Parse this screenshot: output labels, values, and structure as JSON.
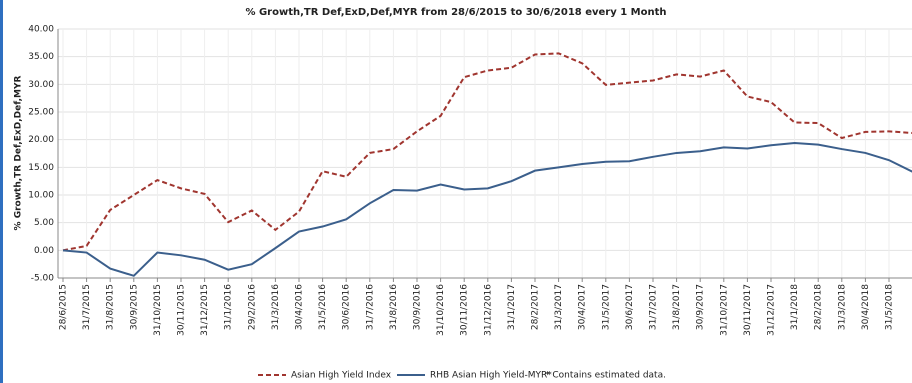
{
  "chart_data": {
    "type": "line",
    "title": "% Growth,TR Def,ExD,Def,MYR from 28/6/2015 to 30/6/2018 every 1 Month",
    "y_label": "% Growth,TR Def,ExD,Def,MYR",
    "note": "*  Contains estimated data.",
    "categories": [
      "28/6/2015",
      "31/7/2015",
      "31/8/2015",
      "30/9/2015",
      "31/10/2015",
      "30/11/2015",
      "31/12/2015",
      "31/1/2016",
      "29/2/2016",
      "31/3/2016",
      "30/4/2016",
      "31/5/2016",
      "30/6/2016",
      "31/7/2016",
      "31/8/2016",
      "30/9/2016",
      "31/10/2016",
      "30/11/2016",
      "31/12/2016",
      "31/1/2017",
      "28/2/2017",
      "31/3/2017",
      "30/4/2017",
      "31/5/2017",
      "30/6/2017",
      "31/7/2017",
      "31/8/2017",
      "30/9/2017",
      "31/10/2017",
      "30/11/2017",
      "31/12/2017",
      "31/1/2018",
      "28/2/2018",
      "31/3/2018",
      "30/4/2018",
      "31/5/2018",
      null
    ],
    "series": [
      {
        "name": "Asian High Yield Index",
        "color": "#a0352f",
        "dash": true,
        "values": [
          0,
          0.8,
          7.3,
          10,
          12.7,
          11.2,
          10.2,
          5.1,
          7.2,
          3.7,
          7,
          14.3,
          13.3,
          17.6,
          18.3,
          21.5,
          24.3,
          31.3,
          32.5,
          33,
          35.4,
          35.6,
          33.8,
          29.9,
          30.3,
          30.7,
          31.8,
          31.4,
          32.5,
          27.8,
          26.8,
          23.1,
          23,
          20.3,
          21.4,
          21.5,
          21.2
        ]
      },
      {
        "name": "RHB Asian High Yield-MYR*",
        "color": "#3b5f8c",
        "dash": false,
        "values": [
          0,
          -0.4,
          -3.3,
          -4.6,
          -0.4,
          -0.9,
          -1.7,
          -3.5,
          -2.5,
          0.4,
          3.4,
          4.3,
          5.6,
          8.5,
          10.9,
          10.8,
          11.9,
          11,
          11.2,
          12.5,
          14.4,
          15,
          15.6,
          16,
          16.1,
          16.9,
          17.6,
          17.9,
          18.6,
          18.4,
          19,
          19.4,
          19.1,
          18.3,
          17.6,
          16.3,
          14.2
        ]
      }
    ],
    "ylim": [
      -5,
      40
    ],
    "yticks": [
      {
        "value": -5,
        "label": "-5.00"
      },
      {
        "value": 0,
        "label": "0.00"
      },
      {
        "value": 5,
        "label": "5.00"
      },
      {
        "value": 10,
        "label": "10.00"
      },
      {
        "value": 15,
        "label": "15.00"
      },
      {
        "value": 20,
        "label": "20.00"
      },
      {
        "value": 25,
        "label": "25.00"
      },
      {
        "value": 30,
        "label": "30.00"
      },
      {
        "value": 35,
        "label": "35.00"
      },
      {
        "value": 40,
        "label": "40.00"
      }
    ],
    "grid": true
  }
}
